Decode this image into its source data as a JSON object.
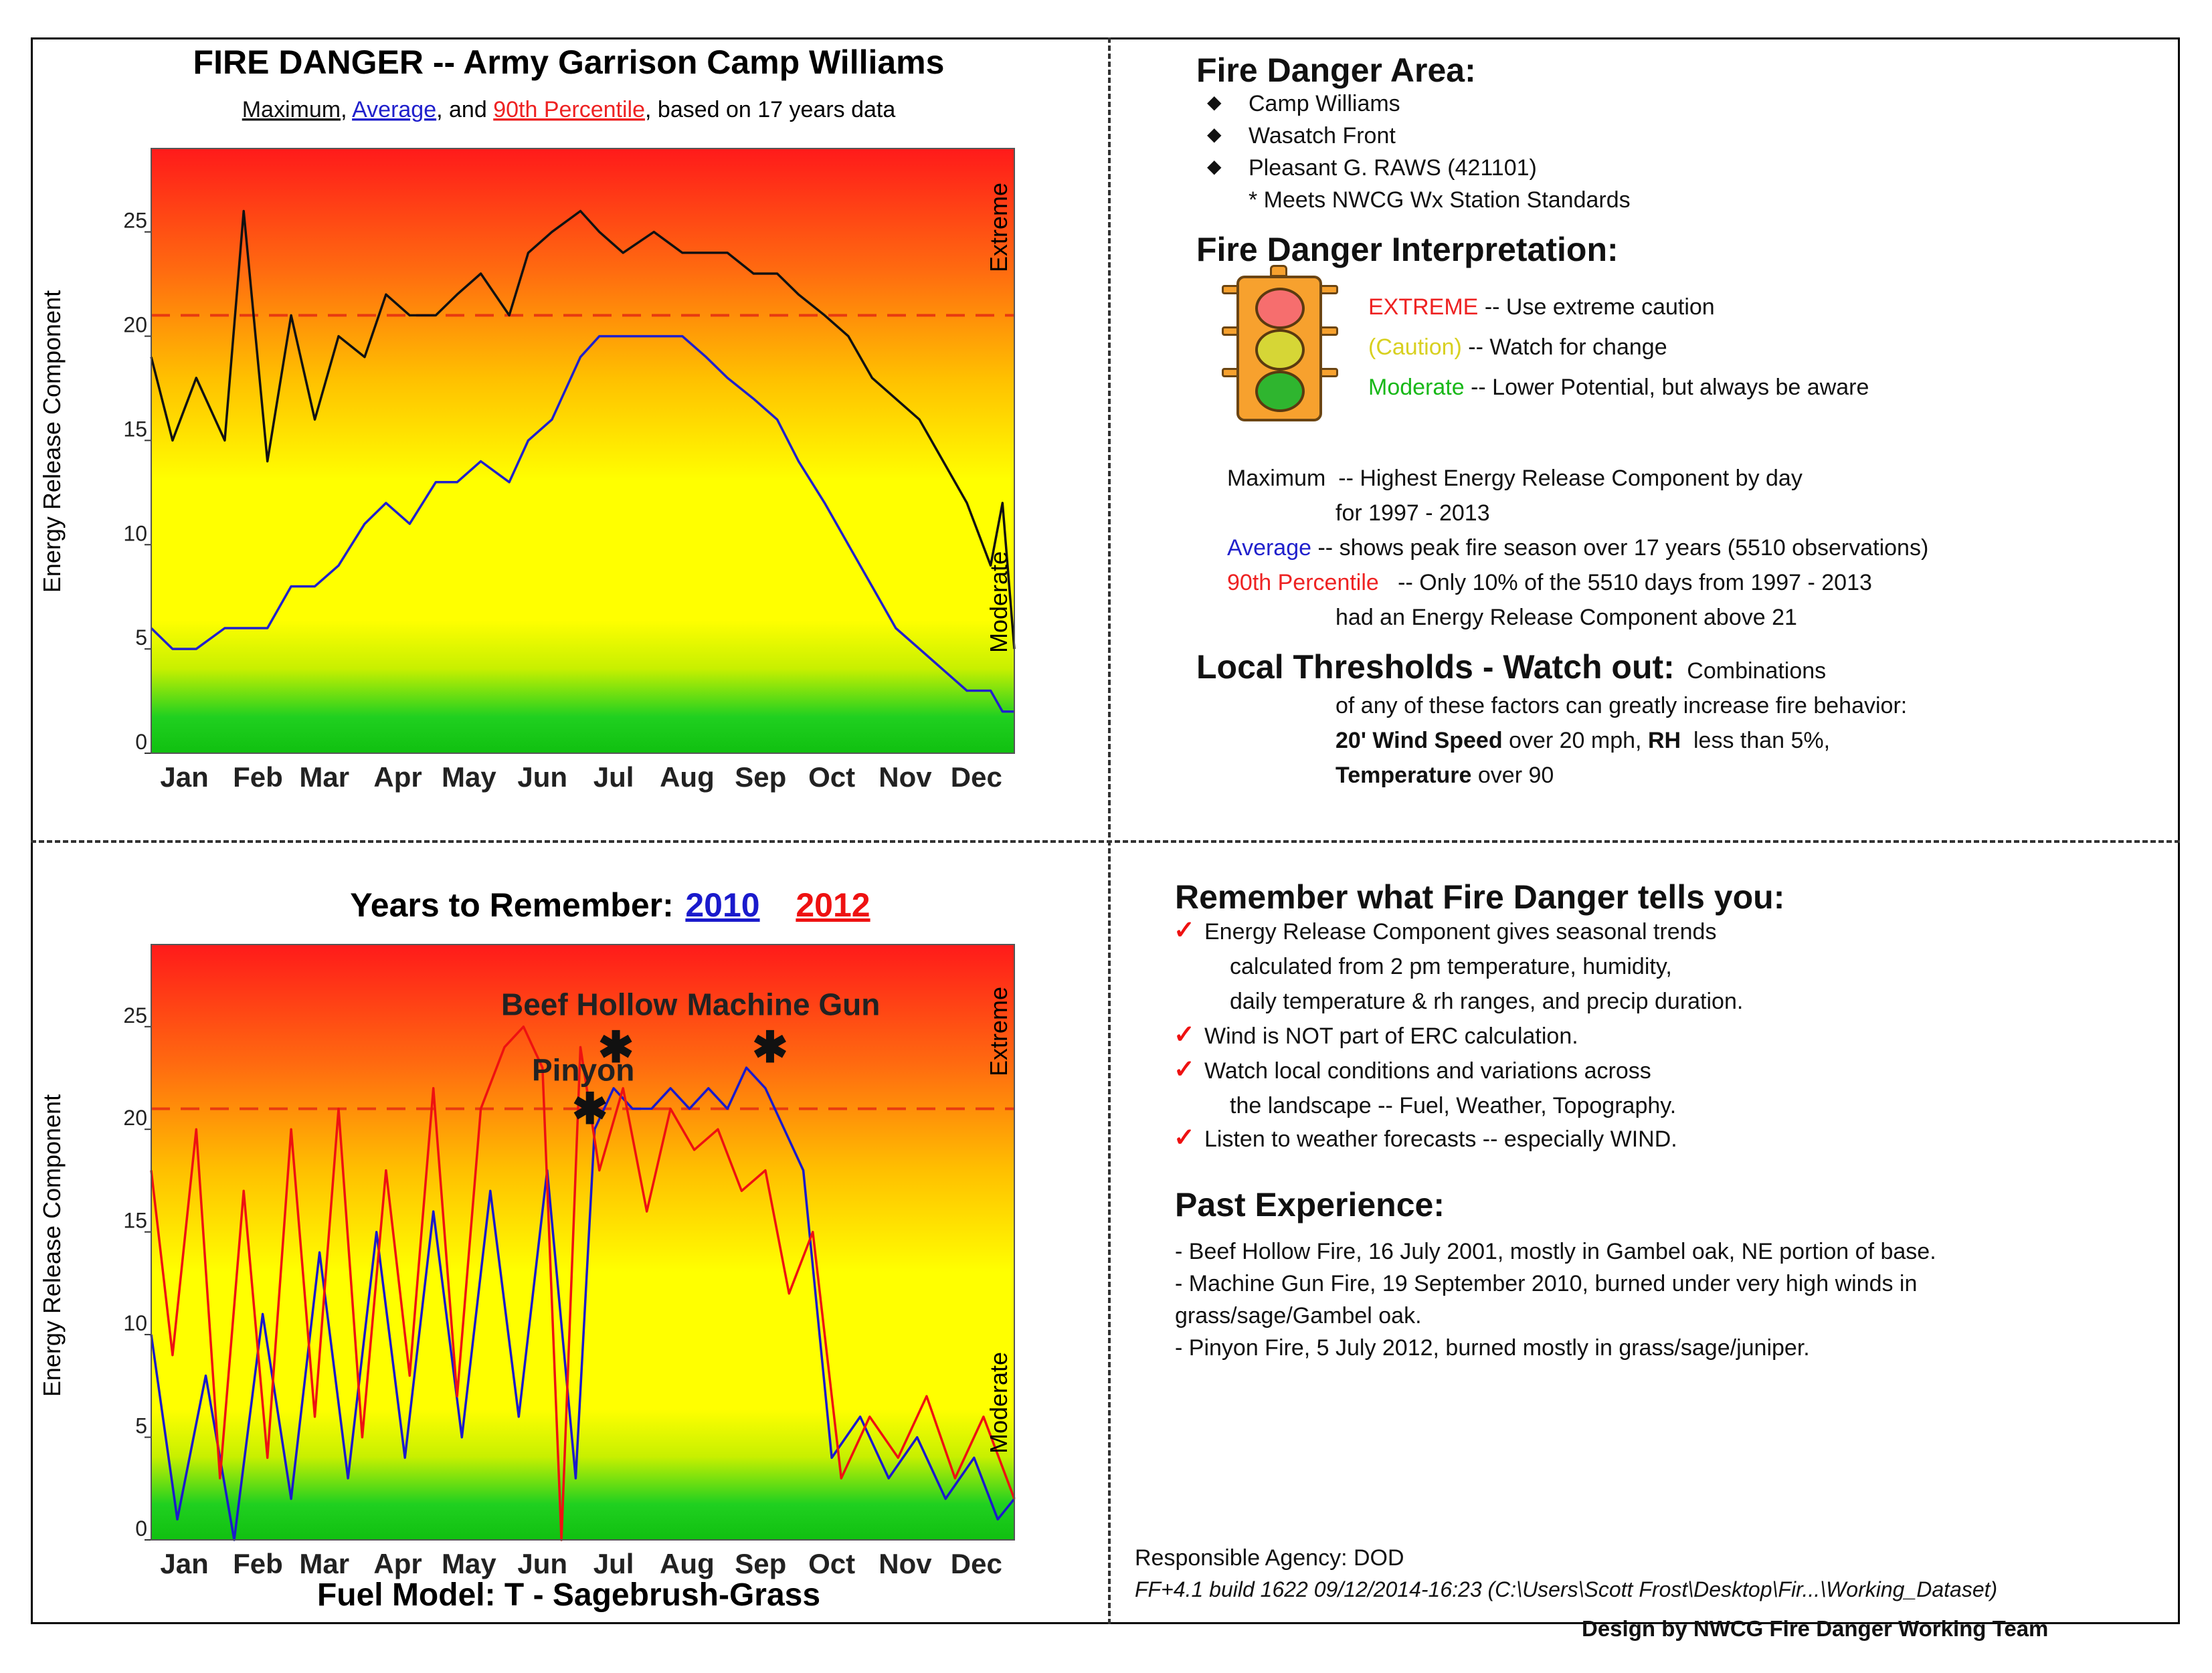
{
  "colors": {
    "maximum": "#111111",
    "average": "#2020cc",
    "p90": "#ee2222",
    "y2010": "#1a1acc",
    "y2012": "#ee1111",
    "extreme": "#ee2222",
    "caution": "#d8d020",
    "moderate": "#18b818"
  },
  "chart_data": [
    {
      "type": "line",
      "title": "FIRE DANGER -- Army Garrison Camp Williams",
      "subtitle": {
        "maximum": "Maximum",
        "sep1": ",",
        "average": "Average",
        "sep2": ", and",
        "p90": "90th Percentile",
        "rest": ", based on 17 years data"
      },
      "ylabel": "Energy Release Component",
      "right_top_label": "Extreme",
      "right_bottom_label": "Moderate",
      "ylim": [
        0,
        29
      ],
      "yticks": [
        0,
        5,
        10,
        15,
        20,
        25
      ],
      "categories": [
        "Jan",
        "Feb",
        "Mar",
        "Apr",
        "May",
        "Jun",
        "Jul",
        "Aug",
        "Sep",
        "Oct",
        "Nov",
        "Dec"
      ],
      "threshold": 21,
      "series": [
        {
          "name": "Maximum",
          "x": [
            1,
            10,
            20,
            32,
            40,
            50,
            60,
            70,
            80,
            91,
            100,
            110,
            121,
            130,
            140,
            152,
            160,
            170,
            182,
            190,
            200,
            213,
            225,
            235,
            244,
            255,
            265,
            274,
            285,
            295,
            305,
            315,
            325,
            335,
            345,
            355,
            360,
            365
          ],
          "values": [
            19,
            15,
            18,
            15,
            26,
            14,
            21,
            16,
            20,
            19,
            22,
            21,
            21,
            22,
            23,
            21,
            24,
            25,
            26,
            25,
            24,
            25,
            24,
            24,
            24,
            23,
            23,
            22,
            21,
            20,
            18,
            17,
            16,
            14,
            12,
            9,
            12,
            5
          ]
        },
        {
          "name": "Average",
          "x": [
            1,
            10,
            20,
            32,
            40,
            50,
            60,
            70,
            80,
            91,
            100,
            110,
            121,
            130,
            140,
            152,
            160,
            170,
            182,
            190,
            200,
            213,
            225,
            235,
            244,
            255,
            265,
            274,
            285,
            295,
            305,
            315,
            325,
            335,
            345,
            355,
            360,
            365
          ],
          "values": [
            6,
            5,
            5,
            6,
            6,
            6,
            8,
            8,
            9,
            11,
            12,
            11,
            13,
            13,
            14,
            13,
            15,
            16,
            19,
            20,
            20,
            20,
            20,
            19,
            18,
            17,
            16,
            14,
            12,
            10,
            8,
            6,
            5,
            4,
            3,
            3,
            2,
            2
          ]
        },
        {
          "name": "90th Percentile",
          "x": [
            1,
            365
          ],
          "values": [
            21,
            21
          ]
        }
      ]
    },
    {
      "type": "line",
      "title": "Years to Remember:",
      "legend": [
        "2010",
        "2012"
      ],
      "ylabel": "Energy Release Component",
      "right_top_label": "Extreme",
      "right_bottom_label": "Moderate",
      "ylim": [
        0,
        29
      ],
      "yticks": [
        0,
        5,
        10,
        15,
        20,
        25
      ],
      "categories": [
        "Jan",
        "Feb",
        "Mar",
        "Apr",
        "May",
        "Jun",
        "Jul",
        "Aug",
        "Sep",
        "Oct",
        "Nov",
        "Dec"
      ],
      "threshold": 21,
      "xlabel": "Fuel Model:  T - Sagebrush-Grass",
      "series": [
        {
          "name": "2010",
          "x": [
            1,
            12,
            24,
            36,
            48,
            60,
            72,
            84,
            96,
            108,
            120,
            132,
            144,
            156,
            168,
            180,
            188,
            196,
            204,
            212,
            220,
            228,
            236,
            244,
            252,
            260,
            268,
            276,
            288,
            300,
            312,
            324,
            336,
            348,
            358,
            365
          ],
          "values": [
            10,
            1,
            8,
            0,
            11,
            2,
            14,
            3,
            15,
            4,
            16,
            5,
            17,
            6,
            18,
            3,
            20,
            22,
            21,
            21,
            22,
            21,
            22,
            21,
            23,
            22,
            20,
            18,
            4,
            6,
            3,
            5,
            2,
            4,
            1,
            2
          ]
        },
        {
          "name": "2012",
          "x": [
            1,
            10,
            20,
            30,
            40,
            50,
            60,
            70,
            80,
            90,
            100,
            110,
            120,
            130,
            140,
            150,
            158,
            166,
            174,
            182,
            190,
            200,
            210,
            220,
            230,
            240,
            250,
            260,
            270,
            280,
            292,
            304,
            316,
            328,
            340,
            352,
            365
          ],
          "values": [
            18,
            9,
            20,
            3,
            17,
            4,
            20,
            6,
            21,
            5,
            18,
            8,
            22,
            7,
            21,
            24,
            25,
            23,
            0,
            24,
            18,
            22,
            16,
            21,
            19,
            20,
            17,
            18,
            12,
            15,
            3,
            6,
            4,
            7,
            3,
            6,
            2
          ]
        }
      ],
      "events": [
        {
          "label": "Beef Hollow",
          "day": 197,
          "value": 24
        },
        {
          "label": "Machine Gun",
          "day": 262,
          "value": 24
        },
        {
          "label": "Pinyon",
          "day": 186,
          "value": 21
        }
      ]
    }
  ],
  "area": {
    "title": "Fire Danger Area:",
    "items": [
      "Camp Williams",
      "Wasatch Front",
      "Pleasant G. RAWS (421101)"
    ],
    "note": "* Meets NWCG Wx Station Standards"
  },
  "interp": {
    "title": "Fire Danger Interpretation:",
    "extreme_label": "EXTREME",
    "extreme_text": "-- Use extreme caution",
    "caution_label": "(Caution)",
    "caution_text": "-- Watch for change",
    "moderate_label": "Moderate",
    "moderate_text": "-- Lower Potential, but always be aware"
  },
  "defs": {
    "max_label": "Maximum",
    "max_text1": "-- Highest Energy Release Component by day",
    "max_text2": "for 1997 - 2013",
    "avg_label": "Average",
    "avg_text": "-- shows peak fire season over 17 years (5510 observations)",
    "p90_label": "90th Percentile",
    "p90_text1": "-- Only 10% of the 5510 days from 1997 - 2013",
    "p90_text2": "had an Energy Release Component above 21"
  },
  "thresholds": {
    "title": "Local Thresholds - Watch out:",
    "line1a": "Combinations",
    "line1b": "of any of these factors can greatly increase fire behavior:",
    "wind_label": "20' Wind Speed",
    "wind_text": "over 20 mph,",
    "rh_label": "RH",
    "rh_text": "less than 5%,",
    "temp_label": "Temperature",
    "temp_text": "over 90"
  },
  "remember": {
    "title": "Remember what Fire Danger tells you:",
    "l1": "Energy Release Component gives seasonal trends",
    "l1b": "calculated from 2 pm temperature, humidity,",
    "l1c": "daily temperature & rh ranges, and precip duration.",
    "l2": "Wind is NOT part of ERC calculation.",
    "l3": "Watch local conditions and variations across",
    "l3b": "the landscape -- Fuel, Weather, Topography.",
    "l4": "Listen to weather forecasts -- especially WIND."
  },
  "past": {
    "title": "Past Experience:",
    "l1": "- Beef Hollow Fire, 16 July 2001, mostly in Gambel oak, NE portion of base.",
    "l2": "- Machine Gun Fire, 19 September 2010, burned under very high winds in",
    "l2b": "grass/sage/Gambel oak.",
    "l3": "- Pinyon Fire, 5 July 2012, burned mostly in grass/sage/juniper."
  },
  "footer": {
    "agency": "Responsible Agency: DOD",
    "build": "FF+4.1 build 1622 09/12/2014-16:23 (C:\\Users\\Scott Frost\\Desktop\\Fir...\\Working_Dataset)",
    "design": "Design by NWCG Fire Danger Working Team"
  }
}
